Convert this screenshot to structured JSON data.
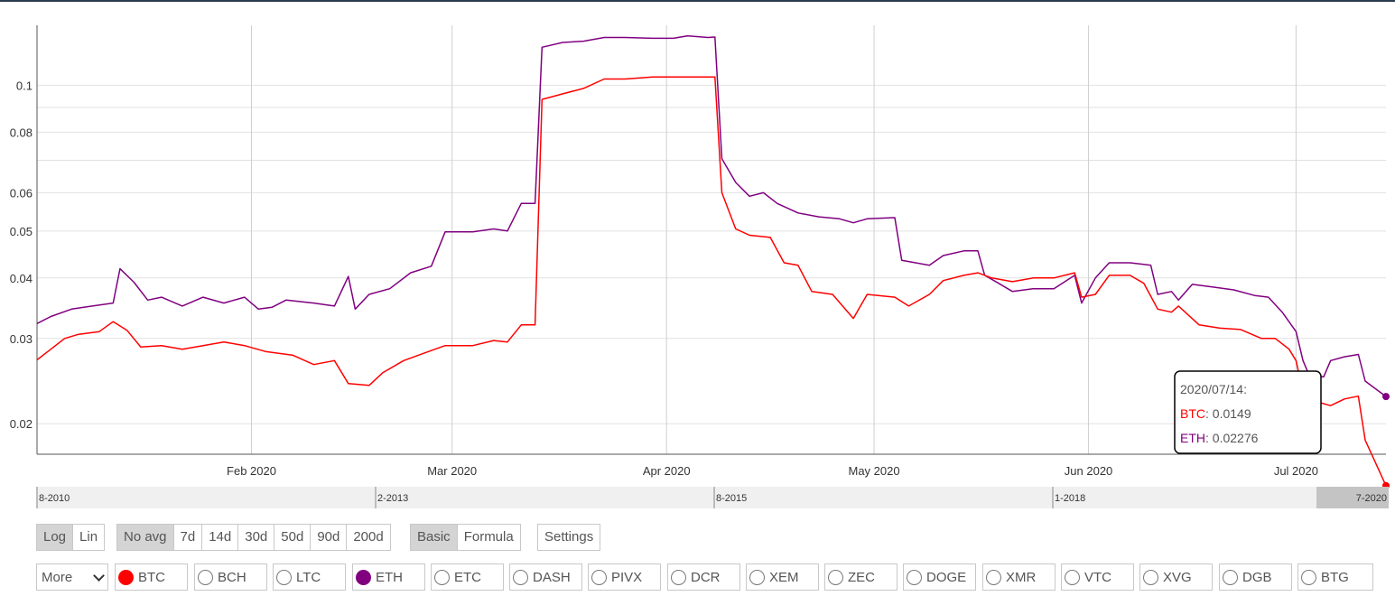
{
  "chart_data": {
    "type": "line",
    "y_scale": "log",
    "ylim": [
      0.0173,
      0.133
    ],
    "xlim": [
      "2020-01-01",
      "2020-07-14"
    ],
    "y_ticks": [
      {
        "value": 0.1,
        "label": "0.1"
      },
      {
        "value": 0.08,
        "label": "0.08"
      },
      {
        "value": 0.06,
        "label": "0.06"
      },
      {
        "value": 0.05,
        "label": "0.05"
      },
      {
        "value": 0.04,
        "label": "0.04"
      },
      {
        "value": 0.03,
        "label": "0.03"
      },
      {
        "value": 0.02,
        "label": "0.02"
      }
    ],
    "y_minor_gridlines": [
      0.09,
      0.07
    ],
    "x_ticks": [
      {
        "date": "2020-02-01",
        "label": "Feb 2020"
      },
      {
        "date": "2020-03-01",
        "label": "Mar 2020"
      },
      {
        "date": "2020-04-01",
        "label": "Apr 2020"
      },
      {
        "date": "2020-05-01",
        "label": "May 2020"
      },
      {
        "date": "2020-06-01",
        "label": "Jun 2020"
      },
      {
        "date": "2020-07-01",
        "label": "Jul 2020"
      }
    ],
    "grid": true,
    "series": [
      {
        "name": "ETH",
        "color": "#800080",
        "points": [
          [
            "2020-01-01",
            0.0322
          ],
          [
            "2020-01-03",
            0.0333
          ],
          [
            "2020-01-06",
            0.0345
          ],
          [
            "2020-01-09",
            0.035
          ],
          [
            "2020-01-12",
            0.0355
          ],
          [
            "2020-01-13",
            0.0418
          ],
          [
            "2020-01-15",
            0.0392
          ],
          [
            "2020-01-17",
            0.036
          ],
          [
            "2020-01-19",
            0.0365
          ],
          [
            "2020-01-22",
            0.035
          ],
          [
            "2020-01-25",
            0.0365
          ],
          [
            "2020-01-28",
            0.0355
          ],
          [
            "2020-01-31",
            0.0365
          ],
          [
            "2020-02-02",
            0.0345
          ],
          [
            "2020-02-04",
            0.0348
          ],
          [
            "2020-02-06",
            0.036
          ],
          [
            "2020-02-10",
            0.0355
          ],
          [
            "2020-02-13",
            0.035
          ],
          [
            "2020-02-15",
            0.0403
          ],
          [
            "2020-02-16",
            0.0345
          ],
          [
            "2020-02-18",
            0.037
          ],
          [
            "2020-02-21",
            0.038
          ],
          [
            "2020-02-24",
            0.041
          ],
          [
            "2020-02-27",
            0.0423
          ],
          [
            "2020-02-29",
            0.0498
          ],
          [
            "2020-03-04",
            0.0498
          ],
          [
            "2020-03-07",
            0.0505
          ],
          [
            "2020-03-09",
            0.05
          ],
          [
            "2020-03-11",
            0.057
          ],
          [
            "2020-03-13",
            0.057
          ],
          [
            "2020-03-14",
            0.1198
          ],
          [
            "2020-03-17",
            0.1226
          ],
          [
            "2020-03-20",
            0.1233
          ],
          [
            "2020-03-23",
            0.1255
          ],
          [
            "2020-03-26",
            0.1255
          ],
          [
            "2020-03-30",
            0.125
          ],
          [
            "2020-04-02",
            0.125
          ],
          [
            "2020-04-04",
            0.1265
          ],
          [
            "2020-04-07",
            0.1255
          ],
          [
            "2020-04-08",
            0.1258
          ],
          [
            "2020-04-09",
            0.0705
          ],
          [
            "2020-04-11",
            0.063
          ],
          [
            "2020-04-13",
            0.059
          ],
          [
            "2020-04-15",
            0.06
          ],
          [
            "2020-04-17",
            0.057
          ],
          [
            "2020-04-20",
            0.0545
          ],
          [
            "2020-04-23",
            0.0535
          ],
          [
            "2020-04-26",
            0.053
          ],
          [
            "2020-04-28",
            0.052
          ],
          [
            "2020-04-30",
            0.053
          ],
          [
            "2020-05-04",
            0.0533
          ],
          [
            "2020-05-05",
            0.0435
          ],
          [
            "2020-05-07",
            0.043
          ],
          [
            "2020-05-09",
            0.0425
          ],
          [
            "2020-05-11",
            0.0445
          ],
          [
            "2020-05-14",
            0.0455
          ],
          [
            "2020-05-16",
            0.0455
          ],
          [
            "2020-05-17",
            0.0405
          ],
          [
            "2020-05-19",
            0.039
          ],
          [
            "2020-05-21",
            0.0375
          ],
          [
            "2020-05-24",
            0.038
          ],
          [
            "2020-05-27",
            0.038
          ],
          [
            "2020-05-30",
            0.0405
          ],
          [
            "2020-05-31",
            0.0355
          ],
          [
            "2020-06-02",
            0.04
          ],
          [
            "2020-06-04",
            0.043
          ],
          [
            "2020-06-07",
            0.043
          ],
          [
            "2020-06-10",
            0.0425
          ],
          [
            "2020-06-11",
            0.037
          ],
          [
            "2020-06-13",
            0.0375
          ],
          [
            "2020-06-14",
            0.036
          ],
          [
            "2020-06-16",
            0.0388
          ],
          [
            "2020-06-19",
            0.0383
          ],
          [
            "2020-06-22",
            0.0378
          ],
          [
            "2020-06-25",
            0.0368
          ],
          [
            "2020-06-27",
            0.0365
          ],
          [
            "2020-06-29",
            0.034
          ],
          [
            "2020-07-01",
            0.031
          ],
          [
            "2020-07-02",
            0.027
          ],
          [
            "2020-07-03",
            0.025
          ],
          [
            "2020-07-05",
            0.025
          ],
          [
            "2020-07-06",
            0.027
          ],
          [
            "2020-07-08",
            0.0275
          ],
          [
            "2020-07-10",
            0.0278
          ],
          [
            "2020-07-11",
            0.0245
          ],
          [
            "2020-07-14",
            0.02276
          ]
        ]
      },
      {
        "name": "BTC",
        "color": "#FF0000",
        "points": [
          [
            "2020-01-01",
            0.0271
          ],
          [
            "2020-01-03",
            0.0285
          ],
          [
            "2020-01-05",
            0.03
          ],
          [
            "2020-01-07",
            0.0306
          ],
          [
            "2020-01-10",
            0.031
          ],
          [
            "2020-01-12",
            0.0325
          ],
          [
            "2020-01-14",
            0.0312
          ],
          [
            "2020-01-16",
            0.0288
          ],
          [
            "2020-01-19",
            0.029
          ],
          [
            "2020-01-22",
            0.0285
          ],
          [
            "2020-01-25",
            0.029
          ],
          [
            "2020-01-28",
            0.0295
          ],
          [
            "2020-01-31",
            0.029
          ],
          [
            "2020-02-03",
            0.0282
          ],
          [
            "2020-02-07",
            0.0277
          ],
          [
            "2020-02-10",
            0.0265
          ],
          [
            "2020-02-13",
            0.027
          ],
          [
            "2020-02-15",
            0.0242
          ],
          [
            "2020-02-18",
            0.024
          ],
          [
            "2020-02-20",
            0.0255
          ],
          [
            "2020-02-23",
            0.027
          ],
          [
            "2020-02-26",
            0.028
          ],
          [
            "2020-02-29",
            0.029
          ],
          [
            "2020-03-04",
            0.029
          ],
          [
            "2020-03-07",
            0.0297
          ],
          [
            "2020-03-09",
            0.0295
          ],
          [
            "2020-03-11",
            0.032
          ],
          [
            "2020-03-13",
            0.032
          ],
          [
            "2020-03-14",
            0.0935
          ],
          [
            "2020-03-17",
            0.096
          ],
          [
            "2020-03-20",
            0.0985
          ],
          [
            "2020-03-23",
            0.103
          ],
          [
            "2020-03-26",
            0.103
          ],
          [
            "2020-03-30",
            0.104
          ],
          [
            "2020-04-02",
            0.104
          ],
          [
            "2020-04-05",
            0.104
          ],
          [
            "2020-04-08",
            0.104
          ],
          [
            "2020-04-09",
            0.06
          ],
          [
            "2020-04-11",
            0.0505
          ],
          [
            "2020-04-13",
            0.049
          ],
          [
            "2020-04-16",
            0.0485
          ],
          [
            "2020-04-18",
            0.043
          ],
          [
            "2020-04-20",
            0.0425
          ],
          [
            "2020-04-22",
            0.0375
          ],
          [
            "2020-04-25",
            0.037
          ],
          [
            "2020-04-28",
            0.033
          ],
          [
            "2020-04-30",
            0.037
          ],
          [
            "2020-05-04",
            0.0365
          ],
          [
            "2020-05-06",
            0.035
          ],
          [
            "2020-05-09",
            0.037
          ],
          [
            "2020-05-11",
            0.0395
          ],
          [
            "2020-05-14",
            0.0405
          ],
          [
            "2020-05-16",
            0.041
          ],
          [
            "2020-05-18",
            0.04
          ],
          [
            "2020-05-21",
            0.0393
          ],
          [
            "2020-05-24",
            0.04
          ],
          [
            "2020-05-27",
            0.04
          ],
          [
            "2020-05-30",
            0.041
          ],
          [
            "2020-05-31",
            0.0365
          ],
          [
            "2020-06-02",
            0.037
          ],
          [
            "2020-06-04",
            0.0405
          ],
          [
            "2020-06-07",
            0.0405
          ],
          [
            "2020-06-09",
            0.039
          ],
          [
            "2020-06-11",
            0.0345
          ],
          [
            "2020-06-13",
            0.034
          ],
          [
            "2020-06-14",
            0.035
          ],
          [
            "2020-06-17",
            0.032
          ],
          [
            "2020-06-20",
            0.0315
          ],
          [
            "2020-06-23",
            0.0313
          ],
          [
            "2020-06-26",
            0.03
          ],
          [
            "2020-06-28",
            0.03
          ],
          [
            "2020-06-30",
            0.0285
          ],
          [
            "2020-07-01",
            0.027
          ],
          [
            "2020-07-02",
            0.0233
          ],
          [
            "2020-07-04",
            0.0222
          ],
          [
            "2020-07-06",
            0.0218
          ],
          [
            "2020-07-08",
            0.0225
          ],
          [
            "2020-07-10",
            0.0228
          ],
          [
            "2020-07-11",
            0.0185
          ],
          [
            "2020-07-14",
            0.0149
          ]
        ]
      }
    ]
  },
  "navigator": {
    "labels": [
      "8-2010",
      "2-2013",
      "8-2015",
      "1-2018",
      "7-2020"
    ]
  },
  "tooltip": {
    "date": "2020/07/14:",
    "rows": [
      {
        "name": "BTC",
        "value": "0.0149",
        "color": "#FF0000"
      },
      {
        "name": "ETH",
        "value": "0.02276",
        "color": "#800080"
      }
    ]
  },
  "controls": {
    "scale": [
      {
        "label": "Log",
        "active": true
      },
      {
        "label": "Lin",
        "active": false
      }
    ],
    "average": [
      {
        "label": "No avg",
        "active": true
      },
      {
        "label": "7d",
        "active": false
      },
      {
        "label": "14d",
        "active": false
      },
      {
        "label": "30d",
        "active": false
      },
      {
        "label": "50d",
        "active": false
      },
      {
        "label": "90d",
        "active": false
      },
      {
        "label": "200d",
        "active": false
      }
    ],
    "mode": [
      {
        "label": "Basic",
        "active": true
      },
      {
        "label": "Formula",
        "active": false
      }
    ],
    "settings_label": "Settings"
  },
  "coins": {
    "more_label": "More",
    "list": [
      {
        "label": "BTC",
        "selected": true,
        "color": "#FF0000"
      },
      {
        "label": "BCH",
        "selected": false
      },
      {
        "label": "LTC",
        "selected": false
      },
      {
        "label": "ETH",
        "selected": true,
        "color": "#800080"
      },
      {
        "label": "ETC",
        "selected": false
      },
      {
        "label": "DASH",
        "selected": false
      },
      {
        "label": "PIVX",
        "selected": false
      },
      {
        "label": "DCR",
        "selected": false
      },
      {
        "label": "XEM",
        "selected": false
      },
      {
        "label": "ZEC",
        "selected": false
      },
      {
        "label": "DOGE",
        "selected": false
      },
      {
        "label": "XMR",
        "selected": false
      },
      {
        "label": "VTC",
        "selected": false
      },
      {
        "label": "XVG",
        "selected": false
      },
      {
        "label": "DGB",
        "selected": false
      },
      {
        "label": "BTG",
        "selected": false
      }
    ]
  }
}
